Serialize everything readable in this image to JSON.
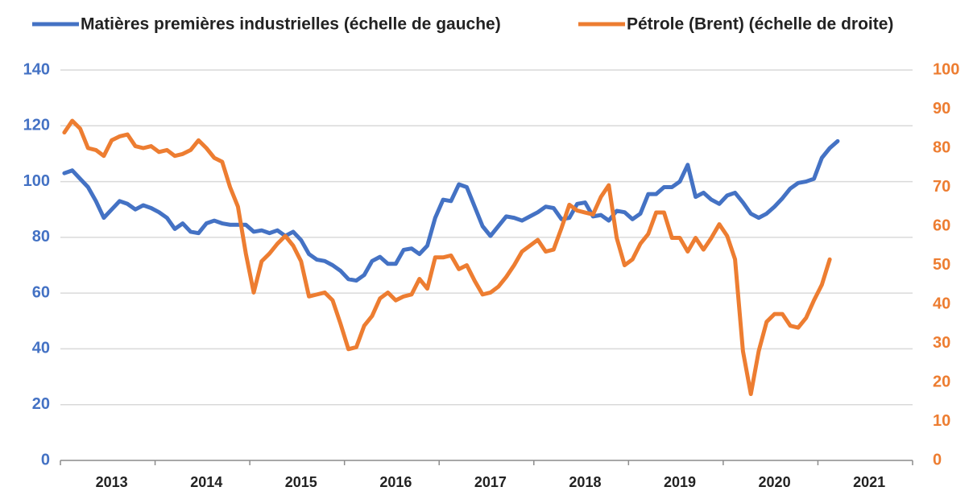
{
  "chart_data": {
    "type": "line",
    "categories": [
      null,
      null,
      null,
      null,
      null,
      null,
      "2013",
      null,
      null,
      null,
      null,
      null,
      null,
      null,
      null,
      null,
      null,
      null,
      "2014",
      null,
      null,
      null,
      null,
      null,
      null,
      null,
      null,
      null,
      null,
      null,
      "2015",
      null,
      null,
      null,
      null,
      null,
      null,
      null,
      null,
      null,
      null,
      null,
      "2016",
      null,
      null,
      null,
      null,
      null,
      null,
      null,
      null,
      null,
      null,
      null,
      "2017",
      null,
      null,
      null,
      null,
      null,
      null,
      null,
      null,
      null,
      null,
      null,
      "2018",
      null,
      null,
      null,
      null,
      null,
      null,
      null,
      null,
      null,
      null,
      null,
      "2019",
      null,
      null,
      null,
      null,
      null,
      null,
      null,
      null,
      null,
      null,
      null,
      "2020",
      null,
      null,
      null,
      null,
      null,
      null,
      null,
      null,
      null,
      null,
      null,
      "2021",
      null,
      null,
      null,
      null,
      null
    ],
    "series": [
      {
        "name": "Matières premières industrielles (échelle de gauche)",
        "color": "#4472c4",
        "axis": "y",
        "values": [
          103,
          104,
          101,
          98,
          93,
          87,
          90,
          93,
          92,
          90,
          91.5,
          90.5,
          89,
          87,
          83,
          85,
          82,
          81.5,
          85,
          86,
          85,
          84.5,
          84.5,
          84.5,
          82,
          82.5,
          81.5,
          82.5,
          80.5,
          82,
          79,
          74,
          72,
          71.5,
          70,
          68,
          65,
          64.5,
          66.5,
          71.5,
          73,
          70.5,
          70.5,
          75.5,
          76,
          74,
          77,
          87,
          93.5,
          93,
          99,
          98,
          91,
          84,
          80.5,
          84,
          87.5,
          87,
          86,
          87.5,
          89,
          91,
          90.5,
          86.5,
          87,
          92,
          92.5,
          87.5,
          88,
          86,
          89.5,
          89,
          86.5,
          88.5,
          95.5,
          95.5,
          98,
          98,
          100,
          106,
          94.5,
          96,
          93.5,
          92,
          95,
          96,
          92.5,
          88.5,
          87,
          88.5,
          91,
          94,
          97.5,
          99.5,
          100,
          101,
          108.5,
          112,
          114.5,
          null,
          null,
          null,
          null,
          null,
          null,
          null,
          null,
          null
        ]
      },
      {
        "name": "Pétrole (Brent) (échelle de droite)",
        "color": "#ed7d31",
        "axis": "y2",
        "values": [
          84,
          87,
          85,
          80,
          79.5,
          78,
          82,
          83,
          83.5,
          80.5,
          80,
          80.5,
          79,
          79.5,
          78,
          78.5,
          79.5,
          82,
          80,
          77.5,
          76.5,
          70,
          65,
          53,
          43,
          51,
          53,
          55.5,
          57.5,
          55,
          51,
          42,
          42.5,
          43,
          41,
          35,
          28.5,
          29,
          34.5,
          37,
          41.5,
          43,
          41,
          42,
          42.5,
          46.5,
          44,
          52,
          52,
          52.5,
          49,
          50,
          46,
          42.5,
          43,
          44.5,
          47,
          50,
          53.5,
          55,
          56.5,
          53.5,
          54,
          59.5,
          65.5,
          64,
          63.5,
          63,
          67.5,
          70.5,
          57,
          50,
          51.5,
          55.5,
          58,
          63.5,
          63.5,
          57,
          57,
          53.5,
          57,
          54,
          57,
          60.5,
          57.5,
          51.5,
          28,
          17,
          28,
          35.5,
          37.5,
          37.5,
          34.5,
          34,
          36.5,
          41,
          45,
          51.5,
          null,
          null,
          null,
          null,
          null,
          null,
          null,
          null,
          null,
          null
        ]
      }
    ],
    "ylim": [
      0,
      140
    ],
    "yticks": [
      0,
      20,
      40,
      60,
      80,
      100,
      120,
      140
    ],
    "y2lim": [
      0,
      100
    ],
    "y2ticks": [
      0,
      10,
      20,
      30,
      40,
      50,
      60,
      70,
      80,
      90,
      100
    ],
    "grid": true,
    "legend": "top"
  }
}
